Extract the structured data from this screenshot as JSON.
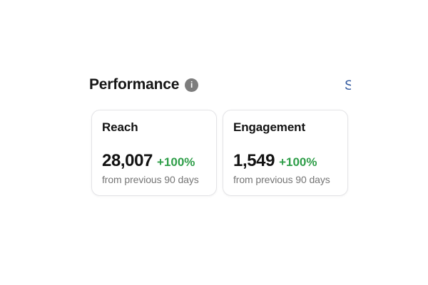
{
  "header": {
    "title": "Performance",
    "info_icon_glyph": "i",
    "see_all_clipped_label": "S"
  },
  "colors": {
    "positive": "#2f9e49",
    "link_blue": "#31589e",
    "icon_gray": "#7d7d7d",
    "muted_text": "#757575",
    "card_border": "#e4e4e7"
  },
  "cards": [
    {
      "label": "Reach",
      "value": "28,007",
      "change": "+100%",
      "caption": "from previous 90 days"
    },
    {
      "label": "Engagement",
      "value": "1,549",
      "change": "+100%",
      "caption": "from previous 90 days"
    }
  ]
}
